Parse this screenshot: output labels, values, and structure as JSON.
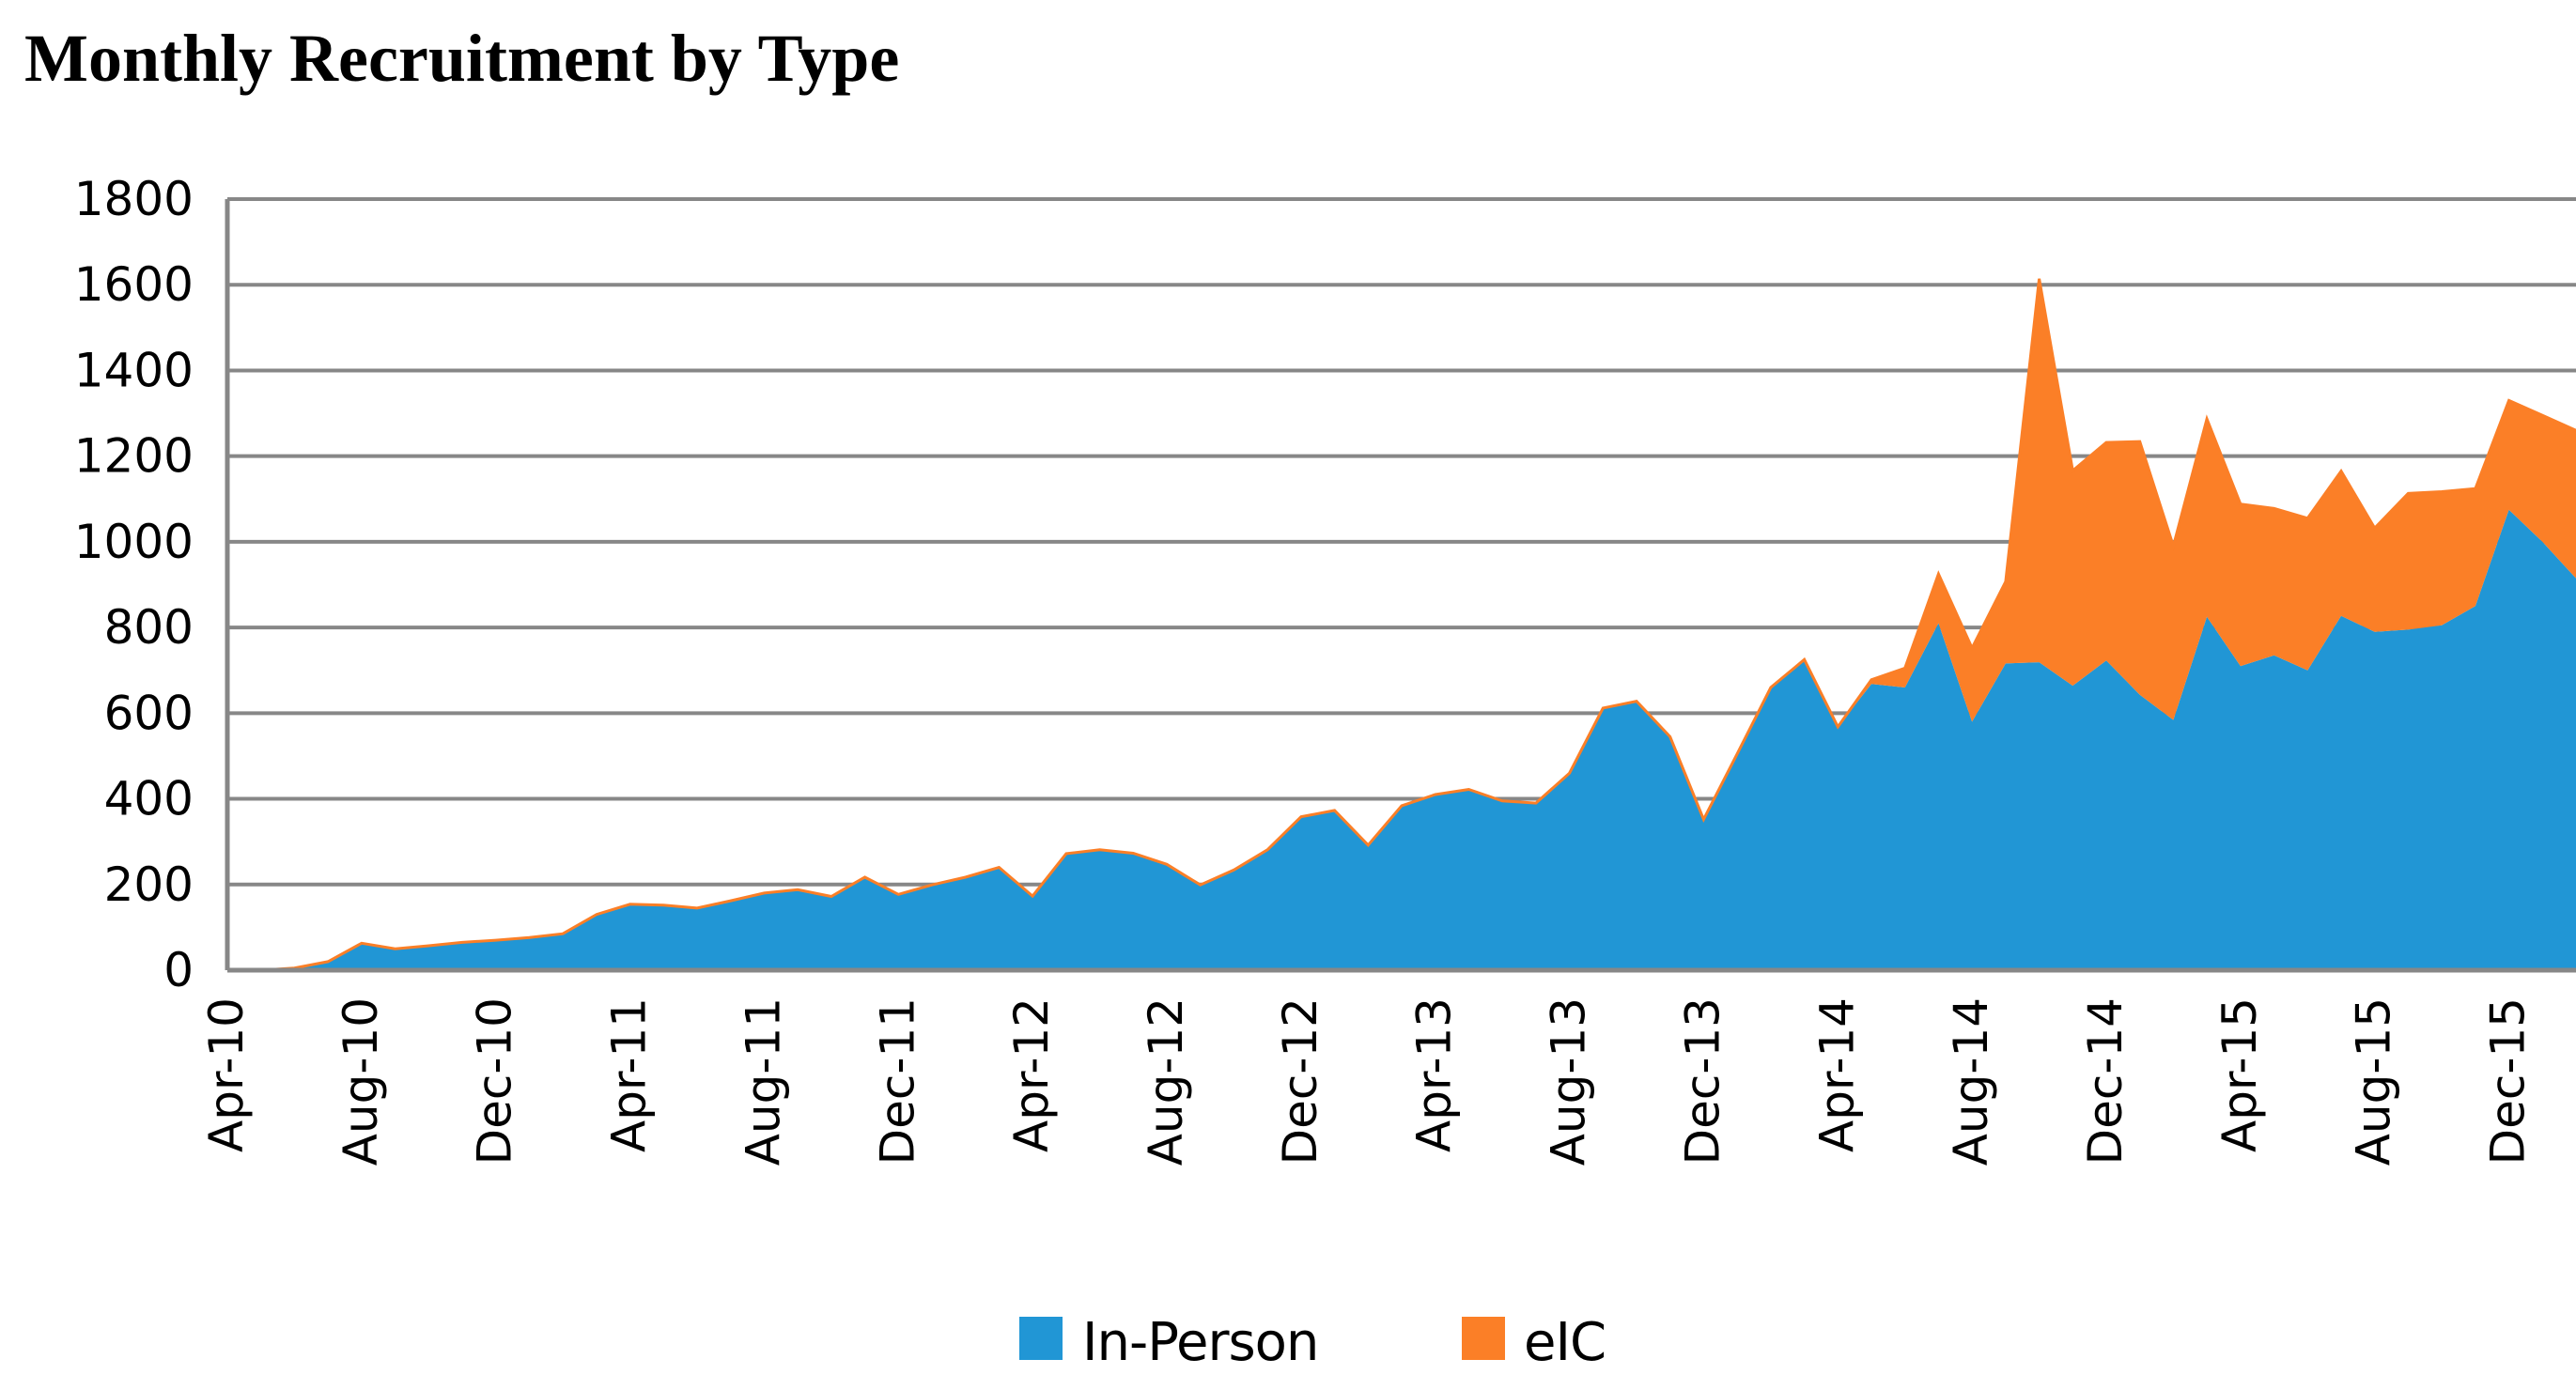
{
  "title": "Monthly Recruitment by Type",
  "legend": {
    "position": "bottom-center",
    "items": [
      {
        "label": "In-Person",
        "color": "#2196D5"
      },
      {
        "label": "eIC",
        "color": "#FB7F27"
      }
    ]
  },
  "chart_data": {
    "type": "area",
    "stacked": true,
    "title": "Monthly Recruitment by Type",
    "xlabel": "",
    "ylabel": "",
    "ylim": [
      0,
      1800
    ],
    "ytick_step": 200,
    "x_tick_every": 4,
    "grid": "horizontal",
    "gridline_color": "#878787",
    "axis_color": "#878787",
    "text_color": "#000000",
    "background": "#ffffff",
    "x_labels": [
      "Apr-10",
      "May-10",
      "Jun-10",
      "Jul-10",
      "Aug-10",
      "Sep-10",
      "Oct-10",
      "Nov-10",
      "Dec-10",
      "Jan-11",
      "Feb-11",
      "Mar-11",
      "Apr-11",
      "May-11",
      "Jun-11",
      "Jul-11",
      "Aug-11",
      "Sep-11",
      "Oct-11",
      "Nov-11",
      "Dec-11",
      "Jan-12",
      "Feb-12",
      "Mar-12",
      "Apr-12",
      "May-12",
      "Jun-12",
      "Jul-12",
      "Aug-12",
      "Sep-12",
      "Oct-12",
      "Nov-12",
      "Dec-12",
      "Jan-13",
      "Feb-13",
      "Mar-13",
      "Apr-13",
      "May-13",
      "Jun-13",
      "Jul-13",
      "Aug-13",
      "Sep-13",
      "Oct-13",
      "Nov-13",
      "Dec-13",
      "Jan-14",
      "Feb-14",
      "Mar-14",
      "Apr-14",
      "May-14",
      "Jun-14",
      "Jul-14",
      "Aug-14",
      "Sep-14",
      "Oct-14",
      "Nov-14",
      "Dec-14",
      "Jan-15",
      "Feb-15",
      "Mar-15",
      "Apr-15",
      "May-15",
      "Jun-15",
      "Jul-15",
      "Aug-15",
      "Sep-15",
      "Oct-15",
      "Nov-15",
      "Dec-15",
      "Jan-16",
      "Feb-16"
    ],
    "series": [
      {
        "name": "In-Person",
        "color": "#2196D5",
        "values": [
          0,
          0,
          5,
          20,
          63,
          50,
          57,
          65,
          70,
          76,
          85,
          130,
          154,
          152,
          145,
          162,
          180,
          188,
          172,
          217,
          177,
          199,
          217,
          240,
          173,
          272,
          281,
          273,
          247,
          199,
          234,
          281,
          358,
          373,
          292,
          384,
          410,
          422,
          395,
          390,
          460,
          612,
          628,
          545,
          352,
          505,
          660,
          725,
          568,
          668,
          660,
          810,
          580,
          716,
          719,
          664,
          723,
          643,
          584,
          825,
          710,
          735,
          700,
          827,
          790,
          795,
          805,
          850,
          1075,
          1000,
          915
        ]
      },
      {
        "name": "eIC",
        "color": "#FB7F27",
        "values": [
          0,
          0,
          0,
          0,
          0,
          0,
          0,
          0,
          0,
          0,
          0,
          0,
          0,
          0,
          0,
          0,
          0,
          0,
          0,
          0,
          0,
          0,
          0,
          0,
          0,
          0,
          0,
          0,
          0,
          0,
          0,
          0,
          0,
          0,
          0,
          0,
          0,
          0,
          0,
          0,
          0,
          0,
          0,
          0,
          0,
          0,
          0,
          0,
          0,
          10,
          45,
          115,
          172,
          191,
          895,
          502,
          509,
          591,
          406,
          462,
          378,
          343,
          355,
          338,
          242,
          318,
          312,
          274,
          255,
          295,
          345
        ]
      }
    ]
  }
}
